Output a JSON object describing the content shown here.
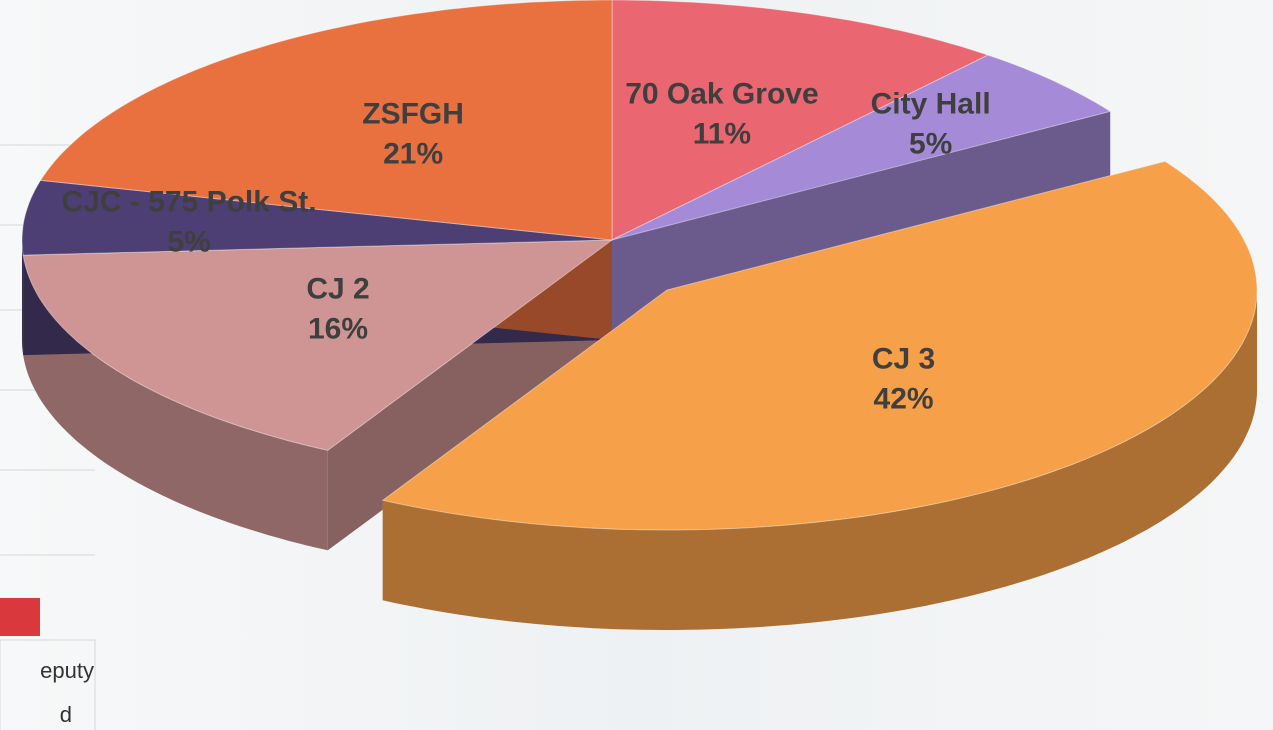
{
  "chart_data": {
    "type": "pie3d",
    "categories": [
      "70 Oak Grove",
      "City Hall",
      "CJ 3",
      "CJ 2",
      "CJC - 575 Polk St.",
      "ZSFGH"
    ],
    "values": [
      11,
      5,
      42,
      16,
      5,
      21
    ],
    "value_labels": [
      "11%",
      "5%",
      "42%",
      "16%",
      "5%",
      "21%"
    ],
    "colors": [
      "#ea6670",
      "#a58ad8",
      "#f7a04a",
      "#cf9494",
      "#4d3f73",
      "#e9703f"
    ],
    "exploded": "CJ 3"
  },
  "background": {
    "texts": [
      "eputy",
      "d"
    ]
  }
}
